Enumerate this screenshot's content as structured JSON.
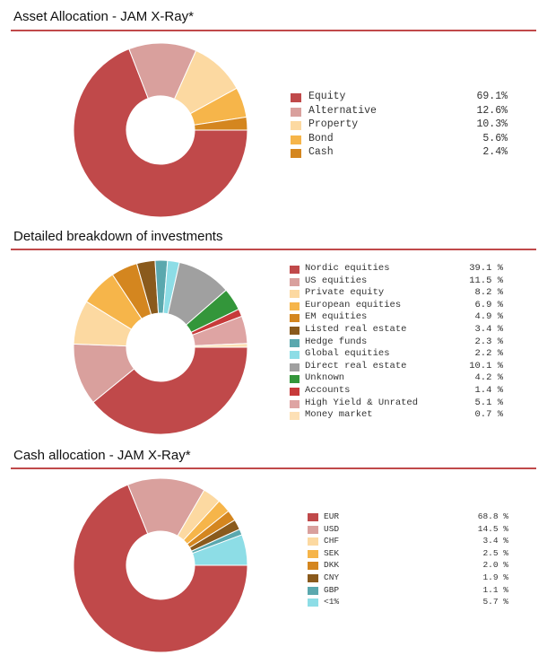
{
  "chart_data": [
    {
      "type": "pie",
      "title": "Asset Allocation - JAM X-Ray*",
      "categories": [
        "Equity",
        "Alternative",
        "Property",
        "Bond",
        "Cash"
      ],
      "values": [
        69.1,
        12.6,
        10.3,
        5.6,
        2.4
      ],
      "value_labels": [
        "69.1%",
        "12.6%",
        "10.3%",
        "5.6%",
        "2.4%"
      ],
      "colors": [
        "#c0494a",
        "#d9a09d",
        "#fcd9a1",
        "#f6b54a",
        "#d4861f"
      ],
      "legend_position": "right"
    },
    {
      "type": "pie",
      "title": "Detailed breakdown of investments",
      "categories": [
        "Nordic equities",
        "US equities",
        "Private equity",
        "European equities",
        "EM equities",
        "Listed real estate",
        "Hedge funds",
        "Global equities",
        "Direct real estate",
        "Unknown",
        "Accounts",
        "High Yield & Unrated",
        "Money market"
      ],
      "values": [
        39.1,
        11.5,
        8.2,
        6.9,
        4.9,
        3.4,
        2.3,
        2.2,
        10.1,
        4.2,
        1.4,
        5.1,
        0.7
      ],
      "value_labels": [
        "39.1 %",
        "11.5 %",
        "8.2 %",
        "6.9 %",
        "4.9 %",
        "3.4 %",
        "2.3 %",
        "2.2 %",
        "10.1 %",
        "4.2 %",
        "1.4 %",
        "5.1 %",
        "0.7 %"
      ],
      "colors": [
        "#c0494a",
        "#d9a09d",
        "#fcd9a1",
        "#f6b54a",
        "#d4861f",
        "#8a5a1c",
        "#5aa8ae",
        "#8ddde6",
        "#a0a0a0",
        "#33963a",
        "#c73a3a",
        "#dea4a3",
        "#fde0b5"
      ],
      "legend_position": "right"
    },
    {
      "type": "pie",
      "title": "Cash allocation - JAM X-Ray*",
      "categories": [
        "EUR",
        "USD",
        "CHF",
        "SEK",
        "DKK",
        "CNY",
        "GBP",
        "<1%"
      ],
      "values": [
        68.8,
        14.5,
        3.4,
        2.5,
        2.0,
        1.9,
        1.1,
        5.7
      ],
      "value_labels": [
        "68.8 %",
        "14.5 %",
        "3.4 %",
        "2.5 %",
        "2.0 %",
        "1.9 %",
        "1.1 %",
        "5.7 %"
      ],
      "colors": [
        "#c0494a",
        "#d9a09d",
        "#fcd9a1",
        "#f6b54a",
        "#d4861f",
        "#8a5a1c",
        "#5aa8ae",
        "#8ddde6"
      ],
      "legend_position": "right"
    }
  ]
}
